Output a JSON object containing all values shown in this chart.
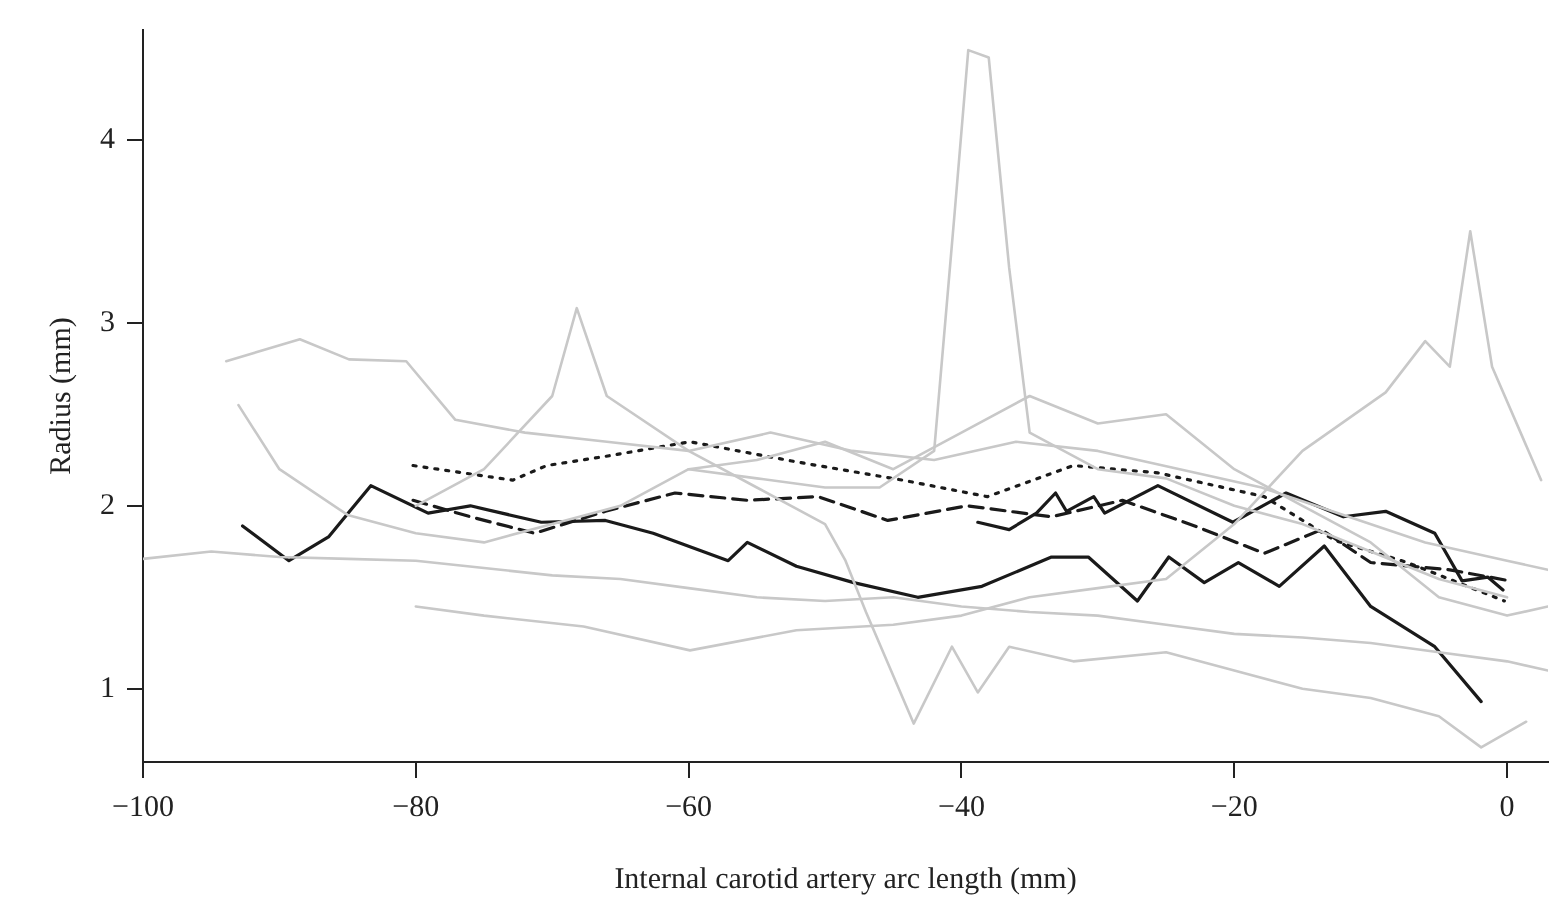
{
  "chart_data": {
    "type": "line",
    "xlabel": "Internal carotid artery arc length (mm)",
    "ylabel": "Radius (mm)",
    "xlim": [
      -100,
      3
    ],
    "xticks": [
      {
        "value": -100,
        "label": "−100"
      },
      {
        "value": -80,
        "label": "−80"
      },
      {
        "value": -60,
        "label": "−60"
      },
      {
        "value": -40,
        "label": "−40"
      },
      {
        "value": -20,
        "label": "−20"
      },
      0
    ],
    "ylim": [
      0.6,
      4.6
    ],
    "yticks": [
      1,
      2,
      3,
      4
    ],
    "grid": false,
    "legend": false,
    "series": [
      {
        "color": "#c8c8c8",
        "line_style": "solid",
        "x": [
          -100,
          -95,
          -90,
          -85,
          -80,
          -75,
          -70,
          -65,
          -60,
          -55,
          -50,
          -45,
          -40,
          -35,
          -30,
          -25,
          -20,
          -15,
          -10,
          -5,
          0,
          3
        ],
        "values": [
          1.71,
          1.75,
          1.72,
          1.71,
          1.7,
          1.66,
          1.62,
          1.6,
          1.55,
          1.5,
          1.48,
          1.5,
          1.45,
          1.42,
          1.4,
          1.35,
          1.3,
          1.28,
          1.25,
          1.2,
          1.15,
          1.1
        ]
      },
      {
        "color": "#c8c8c8",
        "line_style": "solid",
        "x": [
          -93.9,
          -88.5,
          -84.9,
          -80.7,
          -77.1,
          -72,
          -66,
          -60,
          -54,
          -48,
          -42,
          -36,
          -30,
          -24,
          -18,
          -12,
          -6,
          0,
          3
        ],
        "values": [
          2.79,
          2.91,
          2.8,
          2.79,
          2.47,
          2.4,
          2.35,
          2.3,
          2.4,
          2.3,
          2.25,
          2.35,
          2.3,
          2.2,
          2.1,
          1.95,
          1.8,
          1.7,
          1.65
        ]
      },
      {
        "color": "#c8c8c8",
        "line_style": "solid",
        "x": [
          -60,
          -55,
          -50,
          -46,
          -42,
          -40.5,
          -39.5,
          -38,
          -36.5,
          -35,
          -30,
          -25,
          -20,
          -15,
          -10,
          -5,
          0
        ],
        "values": [
          2.2,
          2.15,
          2.1,
          2.1,
          2.3,
          3.6,
          4.49,
          4.45,
          3.3,
          2.4,
          2.2,
          2.15,
          2.0,
          1.9,
          1.75,
          1.6,
          1.5
        ]
      },
      {
        "color": "#c8c8c8",
        "line_style": "solid",
        "x": [
          -80,
          -75,
          -70,
          -68.2,
          -66,
          -60,
          -55,
          -50,
          -48.5,
          -47,
          -43.5,
          -40.7,
          -38.8,
          -36.5,
          -31.8,
          -25,
          -20,
          -15,
          -10,
          -5,
          -1.9,
          1.4
        ],
        "values": [
          2.0,
          2.2,
          2.6,
          3.08,
          2.6,
          2.3,
          2.1,
          1.9,
          1.7,
          1.42,
          0.81,
          1.23,
          0.98,
          1.23,
          1.15,
          1.2,
          1.1,
          1.0,
          0.95,
          0.85,
          0.68,
          0.82
        ]
      },
      {
        "color": "#c8c8c8",
        "line_style": "solid",
        "x": [
          -80,
          -75,
          -67.7,
          -59.9,
          -52.1,
          -45,
          -40,
          -35,
          -30,
          -25,
          -20,
          -15,
          -8.9,
          -6,
          -4.2,
          -2.7,
          -1.1,
          2.5
        ],
        "values": [
          1.45,
          1.4,
          1.34,
          1.21,
          1.32,
          1.35,
          1.4,
          1.5,
          1.55,
          1.6,
          1.9,
          2.3,
          2.62,
          2.9,
          2.76,
          3.5,
          2.76,
          2.14
        ]
      },
      {
        "color": "#c8c8c8",
        "line_style": "solid",
        "x": [
          -93,
          -90,
          -85,
          -80,
          -75,
          -70,
          -65,
          -60,
          -55,
          -50,
          -45,
          -40,
          -35,
          -30,
          -25,
          -20,
          -15,
          -10,
          -5,
          0,
          3
        ],
        "values": [
          2.55,
          2.2,
          1.95,
          1.85,
          1.8,
          1.9,
          2.0,
          2.2,
          2.25,
          2.35,
          2.2,
          2.4,
          2.6,
          2.45,
          2.5,
          2.2,
          2.0,
          1.8,
          1.5,
          1.4,
          1.45
        ]
      },
      {
        "color": "#1a1a1a",
        "line_style": "solid",
        "x": [
          -92.7,
          -89.3,
          -86.4,
          -83.3,
          -79.1,
          -76,
          -70.8,
          -66.1,
          -62.6,
          -57.1,
          -55.7,
          -52.1,
          -47.9,
          -43.2,
          -38.5,
          -33.4,
          -30.7,
          -27.1,
          -24.8,
          -22.2,
          -19.7,
          -16.7,
          -13.4,
          -10,
          -5.3,
          -1.9
        ],
        "values": [
          1.89,
          1.7,
          1.83,
          2.11,
          1.96,
          2.0,
          1.91,
          1.92,
          1.85,
          1.7,
          1.8,
          1.67,
          1.58,
          1.5,
          1.56,
          1.72,
          1.72,
          1.48,
          1.72,
          1.58,
          1.69,
          1.56,
          1.78,
          1.45,
          1.23,
          0.93
        ]
      },
      {
        "color": "#1a1a1a",
        "line_style": "solid",
        "x": [
          -38.8,
          -36.5,
          -34.5,
          -33.1,
          -32.3,
          -30.3,
          -29.5,
          -25.6,
          -20.1,
          -16.2,
          -12,
          -8.9,
          -5.3,
          -3.3,
          -1.4,
          -0.3
        ],
        "values": [
          1.91,
          1.87,
          1.96,
          2.07,
          1.97,
          2.05,
          1.96,
          2.11,
          1.91,
          2.07,
          1.94,
          1.97,
          1.85,
          1.59,
          1.61,
          1.54
        ]
      },
      {
        "color": "#1a1a1a",
        "line_style": "dashed",
        "x": [
          -80.2,
          -76,
          -71.3,
          -66.1,
          -61,
          -55.7,
          -50.5,
          -45.4,
          -39.6,
          -33.4,
          -28.2,
          -22.9,
          -17.8,
          -13.6,
          -10,
          -4.2,
          0.2
        ],
        "values": [
          2.03,
          1.94,
          1.85,
          1.97,
          2.07,
          2.03,
          2.05,
          1.92,
          2.0,
          1.94,
          2.03,
          1.89,
          1.74,
          1.87,
          1.69,
          1.65,
          1.59
        ]
      },
      {
        "color": "#1a1a1a",
        "line_style": "dotted",
        "x": [
          -80.2,
          -72.9,
          -70.4,
          -66.1,
          -59.9,
          -52.1,
          -44.3,
          -38.1,
          -31.8,
          -25.6,
          -17.8,
          -12.6,
          -7.3,
          -0.2
        ],
        "values": [
          2.22,
          2.14,
          2.22,
          2.27,
          2.35,
          2.24,
          2.14,
          2.05,
          2.22,
          2.18,
          2.05,
          1.81,
          1.69,
          1.48
        ]
      }
    ]
  }
}
